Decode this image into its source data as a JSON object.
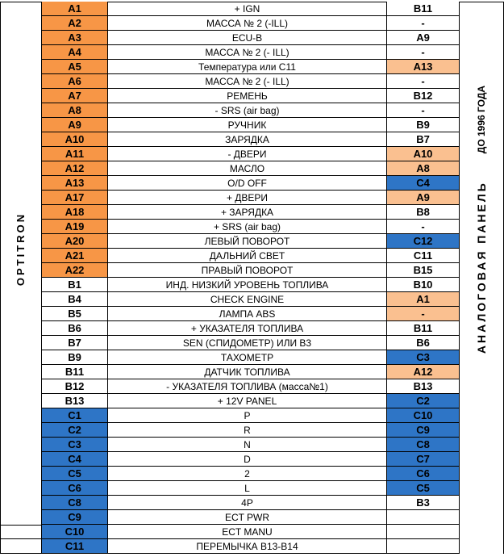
{
  "side_left": "OPTITRON",
  "side_right": {
    "main": "АНАЛОГОВАЯ ПАНЕЛЬ",
    "sub": "ДО 1996 ГОДА"
  },
  "colors": {
    "orange": "#f79646",
    "peach": "#fac090",
    "blue": "#2e75c6",
    "white": "#ffffff"
  },
  "rows": [
    {
      "left": "A1",
      "left_color": "orange",
      "desc": "+ IGN",
      "right": "B11",
      "right_color": "white"
    },
    {
      "left": "A2",
      "left_color": "orange",
      "desc": "МАССА № 2 (-ILL)",
      "right": "-",
      "right_color": "white"
    },
    {
      "left": "A3",
      "left_color": "orange",
      "desc": "ECU-B",
      "right": "A9",
      "right_color": "white"
    },
    {
      "left": "A4",
      "left_color": "orange",
      "desc": "МАССА № 2 (- ILL)",
      "right": "-",
      "right_color": "white"
    },
    {
      "left": "A5",
      "left_color": "orange",
      "desc": "Температура или С11",
      "right": "A13",
      "right_color": "peach"
    },
    {
      "left": "A6",
      "left_color": "orange",
      "desc": "МАССА № 2  (- ILL)",
      "right": "-",
      "right_color": "white"
    },
    {
      "left": "A7",
      "left_color": "orange",
      "desc": "РЕМЕНЬ",
      "right": "B12",
      "right_color": "white"
    },
    {
      "left": "A8",
      "left_color": "orange",
      "desc": "-  SRS (air bag)",
      "right": "-",
      "right_color": "white"
    },
    {
      "left": "A9",
      "left_color": "orange",
      "desc": "РУЧНИК",
      "right": "B9",
      "right_color": "white"
    },
    {
      "left": "A10",
      "left_color": "orange",
      "desc": "ЗАРЯДКА",
      "right": "B7",
      "right_color": "white"
    },
    {
      "left": "A11",
      "left_color": "orange",
      "desc": "- ДВЕРИ",
      "right": "A10",
      "right_color": "peach"
    },
    {
      "left": "A12",
      "left_color": "orange",
      "desc": "МАСЛО",
      "right": "A8",
      "right_color": "peach"
    },
    {
      "left": "A13",
      "left_color": "orange",
      "desc": "O/D   OFF",
      "right": "C4",
      "right_color": "blue"
    },
    {
      "left": "A17",
      "left_color": "orange",
      "desc": "+ ДВЕРИ",
      "right": "A9",
      "right_color": "peach"
    },
    {
      "left": "A18",
      "left_color": "orange",
      "desc": "+ ЗАРЯДКА",
      "right": "B8",
      "right_color": "white"
    },
    {
      "left": "A19",
      "left_color": "orange",
      "desc": "+ SRS (air bag)",
      "right": "-",
      "right_color": "white"
    },
    {
      "left": "A20",
      "left_color": "orange",
      "desc": "ЛЕВЫЙ ПОВОРОТ",
      "right": "C12",
      "right_color": "blue"
    },
    {
      "left": "A21",
      "left_color": "orange",
      "desc": "ДАЛЬНИЙ СВЕТ",
      "right": "C11",
      "right_color": "white"
    },
    {
      "left": "A22",
      "left_color": "orange",
      "desc": "ПРАВЫЙ ПОВОРОТ",
      "right": "B15",
      "right_color": "white"
    },
    {
      "left": "B1",
      "left_color": "white",
      "desc": "ИНД. НИЗКИЙ УРОВЕНЬ ТОПЛИВА",
      "right": "B10",
      "right_color": "white"
    },
    {
      "left": "B4",
      "left_color": "white",
      "desc": "CHECK  ENGINE",
      "right": "A1",
      "right_color": "peach"
    },
    {
      "left": "B5",
      "left_color": "white",
      "desc": "ЛАМПА   ABS",
      "right": "-",
      "right_color": "peach"
    },
    {
      "left": "B6",
      "left_color": "white",
      "desc": "+ УКАЗАТЕЛЯ ТОПЛИВА",
      "right": "B11",
      "right_color": "white"
    },
    {
      "left": "B7",
      "left_color": "white",
      "desc": "SEN (СПИДОМЕТР) ИЛИ B3",
      "right": "B6",
      "right_color": "white"
    },
    {
      "left": "B9",
      "left_color": "white",
      "desc": "ТАХОМЕТР",
      "right": "C3",
      "right_color": "blue"
    },
    {
      "left": "B11",
      "left_color": "white",
      "desc": "ДАТЧИК ТОПЛИВА",
      "right": "A12",
      "right_color": "peach"
    },
    {
      "left": "B12",
      "left_color": "white",
      "desc": "- УКАЗАТЕЛЯ ТОПЛИВА (масса№1)",
      "right": "B13",
      "right_color": "white"
    },
    {
      "left": "B13",
      "left_color": "white",
      "desc": "+ 12V  PANEL",
      "right": "C2",
      "right_color": "blue"
    },
    {
      "left": "C1",
      "left_color": "blue",
      "desc": "P",
      "right": "C10",
      "right_color": "blue"
    },
    {
      "left": "C2",
      "left_color": "blue",
      "desc": "R",
      "right": "C9",
      "right_color": "blue"
    },
    {
      "left": "C3",
      "left_color": "blue",
      "desc": "N",
      "right": "C8",
      "right_color": "blue"
    },
    {
      "left": "C4",
      "left_color": "blue",
      "desc": "D",
      "right": "C7",
      "right_color": "blue"
    },
    {
      "left": "C5",
      "left_color": "blue",
      "desc": "2",
      "right": "C6",
      "right_color": "blue"
    },
    {
      "left": "C6",
      "left_color": "blue",
      "desc": "L",
      "right": "C5",
      "right_color": "blue"
    },
    {
      "left": "C8",
      "left_color": "blue",
      "desc": "4P",
      "right": "B3",
      "right_color": "white"
    },
    {
      "left": "C9",
      "left_color": "blue",
      "desc": "ECT  PWR",
      "right": "",
      "right_color": "white"
    },
    {
      "left": "C10",
      "left_color": "blue",
      "desc": "ECT  MANU",
      "right": "",
      "right_color": "white"
    },
    {
      "left": "C11",
      "left_color": "blue",
      "desc": "ПЕРЕМЫЧКА В13-В14",
      "right": "",
      "right_color": "white"
    }
  ]
}
